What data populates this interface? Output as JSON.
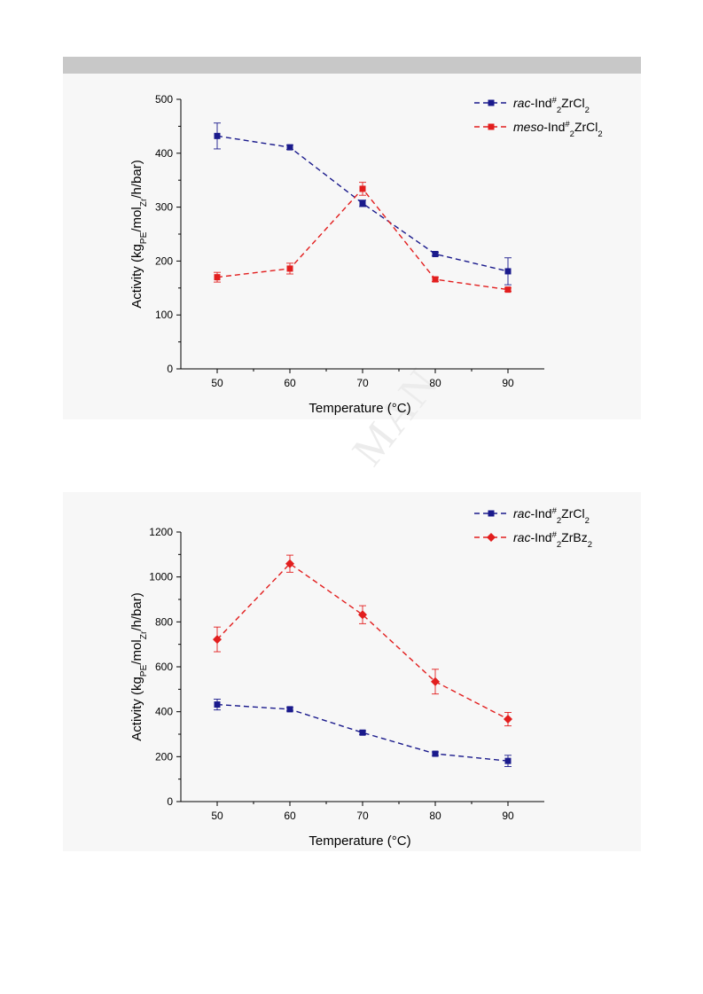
{
  "page": {
    "watermark": "MAN"
  },
  "chart_data": [
    {
      "type": "line",
      "xlabel": "Temperature (°C)",
      "ylabel": "Activity (kgPE/molZr/h/bar)",
      "xlim": [
        45,
        95
      ],
      "ylim": [
        0,
        500
      ],
      "x_ticks": [
        50,
        60,
        70,
        80,
        90
      ],
      "y_ticks": [
        0,
        100,
        200,
        300,
        400,
        500
      ],
      "legend_position": "top-right",
      "grid": false,
      "series": [
        {
          "name": "rac-Ind#2ZrCl2",
          "prefix": "rac",
          "label_rest": "-Ind#2ZrCl2",
          "color": "#1a1a8c",
          "marker": "square",
          "x": [
            50,
            60,
            70,
            80,
            90
          ],
          "values": [
            432,
            411,
            307,
            213,
            181
          ],
          "errors": [
            24,
            4,
            6,
            3,
            25
          ]
        },
        {
          "name": "meso-Ind#2ZrCl2",
          "prefix": "meso",
          "label_rest": "-Ind#2ZrCl2",
          "color": "#e21e1e",
          "marker": "square",
          "x": [
            50,
            60,
            70,
            80,
            90
          ],
          "values": [
            170,
            186,
            334,
            166,
            147
          ],
          "errors": [
            9,
            10,
            12,
            4,
            3
          ]
        }
      ]
    },
    {
      "type": "line",
      "xlabel": "Temperature (°C)",
      "ylabel": "Activity (kgPE/molZr/h/bar)",
      "xlim": [
        45,
        95
      ],
      "ylim": [
        0,
        1200
      ],
      "x_ticks": [
        50,
        60,
        70,
        80,
        90
      ],
      "y_ticks": [
        0,
        200,
        400,
        600,
        800,
        1000,
        1200
      ],
      "legend_position": "top-right",
      "grid": false,
      "series": [
        {
          "name": "rac-Ind#2ZrCl2",
          "prefix": "rac",
          "label_rest": "-Ind#2ZrCl2",
          "color": "#1a1a8c",
          "marker": "square",
          "x": [
            50,
            60,
            70,
            80,
            90
          ],
          "values": [
            432,
            411,
            307,
            213,
            181
          ],
          "errors": [
            24,
            8,
            8,
            8,
            25
          ]
        },
        {
          "name": "rac-Ind#2ZrBz2",
          "prefix": "rac",
          "label_rest": "-Ind#2ZrBz2",
          "color": "#e21e1e",
          "marker": "diamond",
          "x": [
            50,
            60,
            70,
            80,
            90
          ],
          "values": [
            722,
            1059,
            832,
            534,
            367
          ],
          "errors": [
            55,
            38,
            40,
            55,
            30
          ]
        }
      ]
    }
  ]
}
